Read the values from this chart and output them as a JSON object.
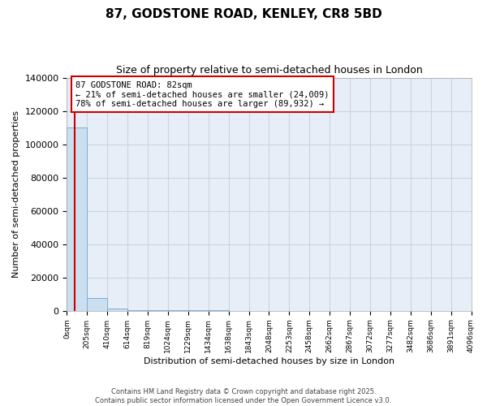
{
  "title": "87, GODSTONE ROAD, KENLEY, CR8 5BD",
  "subtitle": "Size of property relative to semi-detached houses in London",
  "xlabel": "Distribution of semi-detached houses by size in London",
  "ylabel": "Number of semi-detached properties",
  "property_size": 82,
  "annotation_text": "87 GODSTONE ROAD: 82sqm\n← 21% of semi-detached houses are smaller (24,009)\n78% of semi-detached houses are larger (89,932) →",
  "bin_edges": [
    0,
    205,
    410,
    614,
    819,
    1024,
    1229,
    1434,
    1638,
    1843,
    2048,
    2253,
    2458,
    2662,
    2867,
    3072,
    3277,
    3482,
    3686,
    3891,
    4096
  ],
  "bin_counts": [
    110000,
    7500,
    1500,
    500,
    200,
    100,
    80,
    60,
    40,
    30,
    25,
    20,
    15,
    12,
    10,
    8,
    6,
    5,
    4,
    3
  ],
  "bar_color": "#ccdff0",
  "bar_edge_color": "#7bafd4",
  "vline_color": "#cc0000",
  "annotation_box_color": "#cc0000",
  "background_color": "#ffffff",
  "plot_bg_color": "#e8eef8",
  "grid_color": "#c8d4e4",
  "ylim": [
    0,
    140000
  ],
  "yticks": [
    0,
    20000,
    40000,
    60000,
    80000,
    100000,
    120000,
    140000
  ],
  "footer": "Contains HM Land Registry data © Crown copyright and database right 2025.\nContains public sector information licensed under the Open Government Licence v3.0."
}
